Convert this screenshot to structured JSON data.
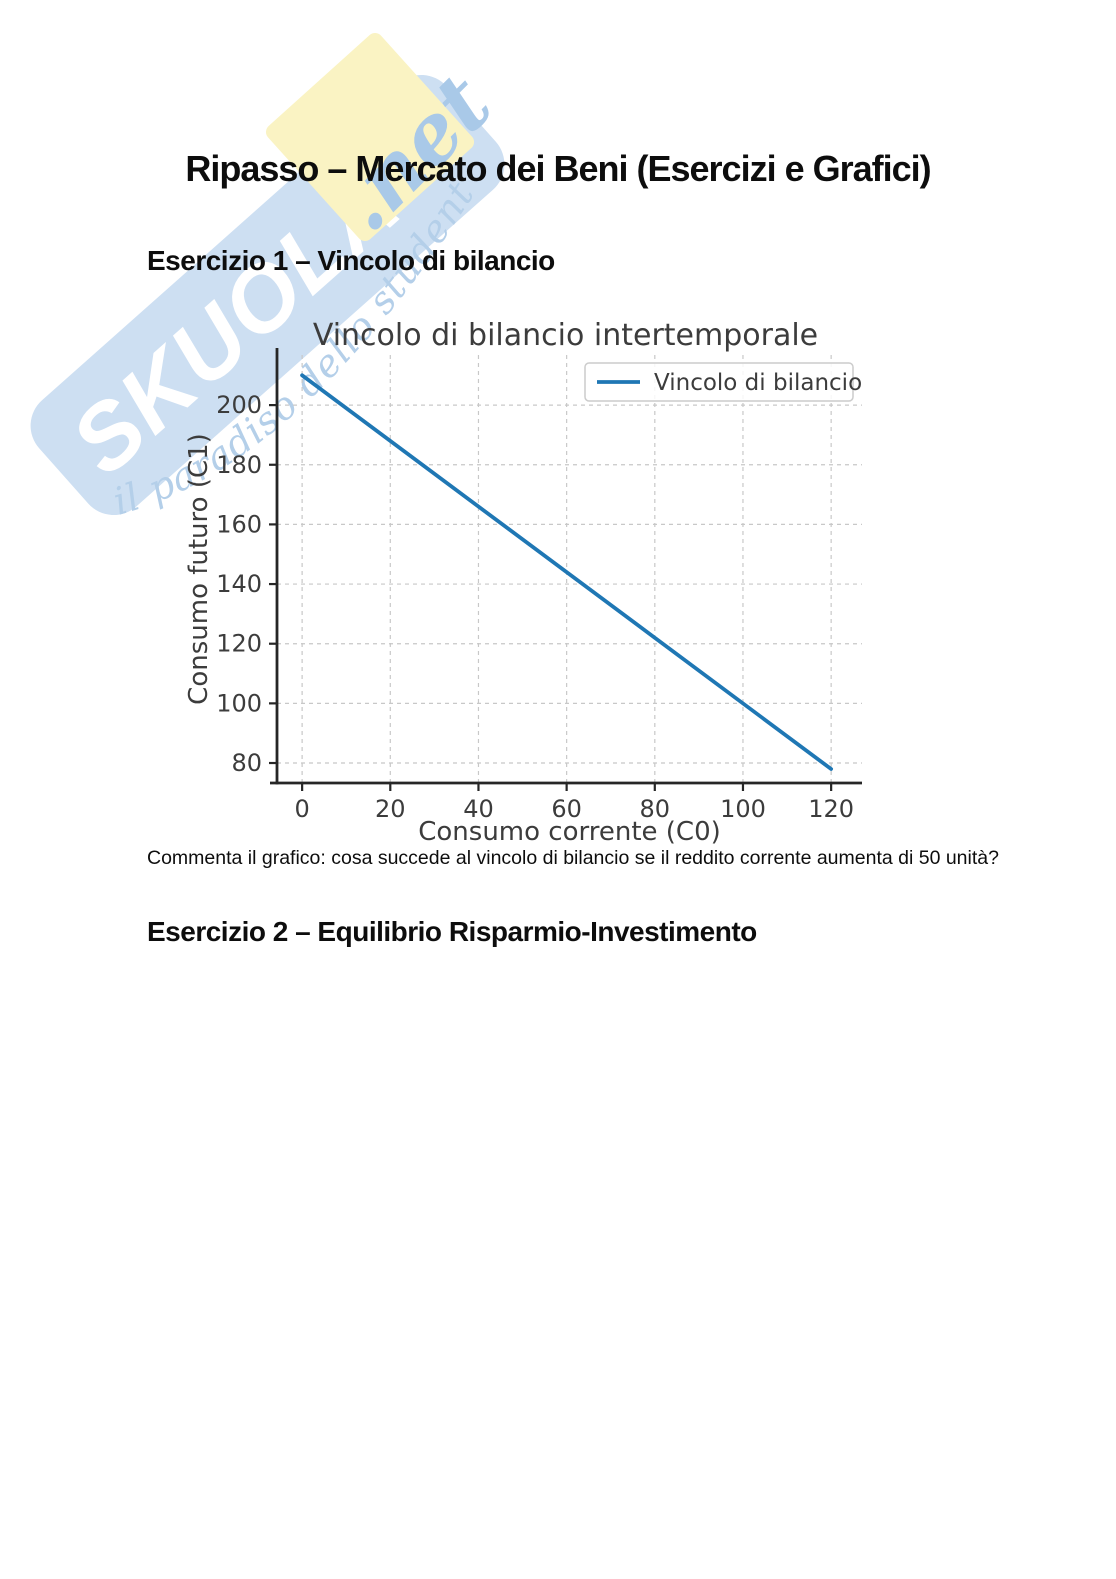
{
  "page": {
    "title": "Ripasso – Mercato dei Beni (Esercizi e Grafici)",
    "sections": [
      {
        "heading": "Esercizio 1 – Vincolo di bilancio"
      },
      {
        "heading": "Esercizio 2 – Equilibrio Risparmio-Investimento"
      }
    ],
    "caption": "Commenta il grafico: cosa succede al vincolo di bilancio se il reddito corrente aumenta di 50 unità?"
  },
  "watermark": {
    "brand": "SKUOLA",
    "brand_suffix": ".net",
    "tagline": "il paradiso dello studente",
    "colors": {
      "band": "#cddff2",
      "letters": "#ffffff",
      "note": "#faf3c3",
      "script": "#a9c9e8",
      "tagline": "#b4cfe9"
    }
  },
  "chart_data": {
    "type": "line",
    "title": "Vincolo di bilancio intertemporale",
    "xlabel": "Consumo corrente (C0)",
    "ylabel": "Consumo futuro (C1)",
    "x_ticks": [
      0,
      20,
      40,
      60,
      80,
      100,
      120
    ],
    "y_ticks": [
      80,
      100,
      120,
      140,
      160,
      180,
      200
    ],
    "xlim": [
      -5.7,
      127.0
    ],
    "ylim": [
      73.3,
      216.8
    ],
    "grid": "dashed",
    "grid_color": "#c8c8c8",
    "spine_color": "#262626",
    "text_color": "#3c3c3c",
    "legend": {
      "position": "upper right",
      "entries": [
        "Vincolo di bilancio"
      ]
    },
    "series": [
      {
        "name": "Vincolo di bilancio",
        "color": "#1f77b4",
        "x": [
          0,
          120
        ],
        "y": [
          210,
          78
        ]
      }
    ]
  }
}
